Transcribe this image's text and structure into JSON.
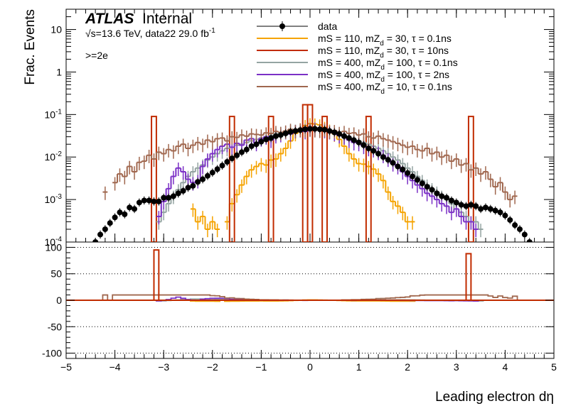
{
  "header": {
    "experiment": "ATLAS",
    "status": "Internal",
    "energy_line": "√s=13.6 TeV, data22 29.0 fb",
    "lumi_exp": "-1",
    "selection": ">=2e"
  },
  "chart_data": [
    {
      "type": "line",
      "panel": "main",
      "ylabel": "Frac. Events",
      "yscale": "log",
      "ylim": [
        0.0001,
        30
      ],
      "xlim": [
        -5,
        5
      ],
      "yticks": [
        {
          "mant": "10",
          "exp": "-4",
          "value": 0.0001
        },
        {
          "mant": "10",
          "exp": "-3",
          "value": 0.001
        },
        {
          "mant": "10",
          "exp": "-2",
          "value": 0.01
        },
        {
          "mant": "10",
          "exp": "-1",
          "value": 0.1
        },
        {
          "mant": "1",
          "exp": "",
          "value": 1
        },
        {
          "mant": "10",
          "exp": "",
          "value": 10
        }
      ],
      "x": [
        -4.5,
        -4.4,
        -4.3,
        -4.2,
        -4.1,
        -4.0,
        -3.9,
        -3.8,
        -3.7,
        -3.6,
        -3.5,
        -3.4,
        -3.3,
        -3.2,
        -3.1,
        -3.0,
        -2.9,
        -2.8,
        -2.7,
        -2.6,
        -2.5,
        -2.4,
        -2.3,
        -2.2,
        -2.1,
        -2.0,
        -1.9,
        -1.8,
        -1.7,
        -1.6,
        -1.5,
        -1.4,
        -1.3,
        -1.2,
        -1.1,
        -1.0,
        -0.9,
        -0.8,
        -0.7,
        -0.6,
        -0.5,
        -0.4,
        -0.3,
        -0.2,
        -0.1,
        0.0,
        0.1,
        0.2,
        0.3,
        0.4,
        0.5,
        0.6,
        0.7,
        0.8,
        0.9,
        1.0,
        1.1,
        1.2,
        1.3,
        1.4,
        1.5,
        1.6,
        1.7,
        1.8,
        1.9,
        2.0,
        2.1,
        2.2,
        2.3,
        2.4,
        2.5,
        2.6,
        2.7,
        2.8,
        2.9,
        3.0,
        3.1,
        3.2,
        3.3,
        3.4,
        3.5,
        3.6,
        3.7,
        3.8,
        3.9,
        4.0,
        4.1,
        4.2,
        4.3,
        4.4,
        4.5
      ],
      "series": [
        {
          "name": "data",
          "color": "#000000",
          "style": "markers",
          "values": [
            8e-05,
            0.0001,
            0.00015,
            0.0002,
            0.00028,
            0.00038,
            0.0005,
            0.00045,
            0.00065,
            0.0006,
            0.00085,
            0.00095,
            0.00095,
            0.0009,
            0.0009,
            0.0011,
            0.0011,
            0.0012,
            0.0014,
            0.0016,
            0.0019,
            0.0021,
            0.0026,
            0.003,
            0.0036,
            0.0043,
            0.0052,
            0.0063,
            0.0077,
            0.0093,
            0.011,
            0.013,
            0.015,
            0.018,
            0.02,
            0.023,
            0.026,
            0.028,
            0.031,
            0.033,
            0.036,
            0.039,
            0.041,
            0.043,
            0.045,
            0.046,
            0.046,
            0.045,
            0.044,
            0.041,
            0.038,
            0.035,
            0.031,
            0.028,
            0.025,
            0.022,
            0.019,
            0.016,
            0.014,
            0.012,
            0.01,
            0.0086,
            0.0073,
            0.006,
            0.0051,
            0.0042,
            0.0035,
            0.0029,
            0.0024,
            0.002,
            0.0017,
            0.0014,
            0.0012,
            0.0011,
            0.00095,
            0.00085,
            0.00075,
            0.0007,
            0.00075,
            0.0007,
            0.0006,
            0.00065,
            0.0006,
            0.00055,
            0.0005,
            0.00042,
            0.00033,
            0.00025,
            0.0002,
            0.00015,
            0.0001
          ]
        },
        {
          "name": "mS = 110, mZ_d = 30, τ = 0.1ns",
          "color": "#f5a300",
          "style": "step",
          "values": [
            0,
            0,
            0,
            0,
            0,
            0,
            0,
            0,
            0,
            0,
            0,
            0,
            0,
            0,
            0,
            0,
            0,
            0,
            0,
            0,
            0,
            0.0006,
            0.0003,
            0.0004,
            0.0002,
            0.0003,
            0.0002,
            0,
            0.0003,
            0.0008,
            0.0013,
            0.0022,
            0.0035,
            0.005,
            0.006,
            0.007,
            0.0065,
            0.0085,
            0.009,
            0.012,
            0.016,
            0.024,
            0.036,
            0.046,
            0.055,
            0.061,
            0.06,
            0.057,
            0.05,
            0.043,
            0.035,
            0.026,
            0.018,
            0.012,
            0.009,
            0.007,
            0.0068,
            0.006,
            0.0052,
            0.004,
            0.0028,
            0.0015,
            0.0009,
            0.0007,
            0.0005,
            0.0003,
            0.0003,
            0,
            0,
            0,
            0,
            0,
            0,
            0,
            0,
            0,
            0,
            0,
            0,
            0,
            0,
            0,
            0,
            0,
            0,
            0,
            0,
            0,
            0,
            0,
            0
          ]
        },
        {
          "name": "mS = 110, mZ_d = 30, τ = 10ns",
          "color": "#c12c00",
          "style": "step",
          "values": [
            0,
            0,
            0,
            0,
            0,
            0,
            0,
            0,
            0,
            0,
            0,
            0,
            0,
            0.09,
            0,
            0,
            0,
            0,
            0,
            0,
            0,
            0,
            0,
            0,
            0,
            0,
            0,
            0,
            0,
            0.09,
            0,
            0,
            0,
            0,
            0,
            0,
            0,
            0.09,
            0,
            0,
            0,
            0,
            0,
            0,
            0.17,
            0.17,
            0,
            0,
            0.09,
            0,
            0,
            0,
            0,
            0,
            0,
            0,
            0,
            0.09,
            0,
            0,
            0,
            0,
            0,
            0,
            0,
            0,
            0,
            0,
            0,
            0,
            0,
            0,
            0,
            0,
            0,
            0,
            0,
            0,
            0.09,
            0,
            0,
            0,
            0,
            0,
            0,
            0,
            0,
            0,
            0,
            0,
            0
          ]
        },
        {
          "name": "mS = 400, mZ_d = 100, τ = 0.1ns",
          "color": "#94a4a2",
          "style": "step",
          "values": [
            0,
            0,
            0,
            0,
            0,
            0,
            0,
            0,
            0,
            0,
            0,
            0,
            0,
            0,
            0.0003,
            0.0005,
            0.0008,
            0.0012,
            0.0017,
            0.0025,
            0.0035,
            0.0045,
            0.0055,
            0.0065,
            0.0085,
            0.01,
            0.012,
            0.014,
            0.016,
            0.017,
            0.019,
            0.02,
            0.022,
            0.024,
            0.026,
            0.028,
            0.03,
            0.032,
            0.035,
            0.038,
            0.04,
            0.042,
            0.043,
            0.044,
            0.045,
            0.045,
            0.044,
            0.043,
            0.042,
            0.04,
            0.037,
            0.034,
            0.031,
            0.028,
            0.026,
            0.024,
            0.022,
            0.02,
            0.018,
            0.016,
            0.014,
            0.012,
            0.01,
            0.0085,
            0.007,
            0.0055,
            0.0045,
            0.0035,
            0.0028,
            0.0022,
            0.0018,
            0.0015,
            0.0012,
            0.001,
            0.0008,
            0.0006,
            0.0005,
            0.0004,
            0.0003,
            0.0003,
            0.0002,
            0,
            0,
            0,
            0,
            0,
            0,
            0,
            0,
            0,
            0
          ]
        },
        {
          "name": "mS = 400, mZ_d = 100, τ = 2ns",
          "color": "#7b30c6",
          "style": "step",
          "values": [
            0,
            0,
            0,
            0,
            0,
            0,
            0,
            0,
            0,
            0,
            0,
            0,
            0,
            0,
            0.0004,
            0.0009,
            0.0018,
            0.0035,
            0.0055,
            0.0045,
            0.003,
            0.0025,
            0.0028,
            0.006,
            0.009,
            0.012,
            0.015,
            0.018,
            0.02,
            0.017,
            0.021,
            0.019,
            0.025,
            0.027,
            0.021,
            0.027,
            0.03,
            0.025,
            0.032,
            0.034,
            0.04,
            0.035,
            0.042,
            0.045,
            0.04,
            0.047,
            0.048,
            0.044,
            0.043,
            0.04,
            0.036,
            0.032,
            0.03,
            0.025,
            0.022,
            0.021,
            0.018,
            0.016,
            0.015,
            0.013,
            0.011,
            0.009,
            0.007,
            0.006,
            0.0045,
            0.0035,
            0.0028,
            0.0022,
            0.0018,
            0.0014,
            0.0012,
            0.001,
            0.0008,
            0.0007,
            0.0005,
            0.0006,
            0.0004,
            0.0003,
            0.0003,
            0.0002,
            0,
            0,
            0,
            0,
            0,
            0,
            0,
            0,
            0,
            0,
            0
          ]
        },
        {
          "name": "mS = 400, mZ_d = 10, τ = 0.1ns",
          "color": "#a0674e",
          "style": "step",
          "values": [
            0,
            0,
            0,
            0.0015,
            0,
            0.0025,
            0.004,
            0.0035,
            0.006,
            0.0045,
            0.0075,
            0.008,
            0.011,
            0.009,
            0.013,
            0.012,
            0.015,
            0.014,
            0.018,
            0.02,
            0.016,
            0.019,
            0.022,
            0.02,
            0.025,
            0.023,
            0.027,
            0.028,
            0.024,
            0.03,
            0.029,
            0.033,
            0.031,
            0.035,
            0.034,
            0.033,
            0.037,
            0.036,
            0.04,
            0.038,
            0.041,
            0.045,
            0.042,
            0.046,
            0.044,
            0.047,
            0.045,
            0.043,
            0.046,
            0.041,
            0.042,
            0.038,
            0.04,
            0.036,
            0.037,
            0.033,
            0.035,
            0.03,
            0.028,
            0.031,
            0.027,
            0.025,
            0.023,
            0.021,
            0.019,
            0.017,
            0.018,
            0.015,
            0.014,
            0.016,
            0.012,
            0.013,
            0.01,
            0.011,
            0.008,
            0.009,
            0.0065,
            0.007,
            0.005,
            0.0055,
            0.004,
            0.0045,
            0.003,
            0.002,
            0.0025,
            0.0015,
            0.001,
            0.0012,
            0,
            0,
            0
          ]
        }
      ]
    },
    {
      "type": "line",
      "panel": "ratio",
      "ylim": [
        -110,
        110
      ],
      "yticks": [
        100,
        50,
        0,
        -50,
        -100
      ],
      "grid": "dotted horizontal",
      "xlabel": "Leading electron dη",
      "xlim": [
        -5,
        5
      ],
      "xticks": [
        -5,
        -4,
        -3,
        -2,
        -1,
        0,
        1,
        2,
        3,
        4,
        5
      ],
      "spikes": [
        {
          "series": 2,
          "x": -3.15,
          "value": 95
        },
        {
          "series": 2,
          "x": 3.25,
          "value": 88
        }
      ]
    }
  ]
}
